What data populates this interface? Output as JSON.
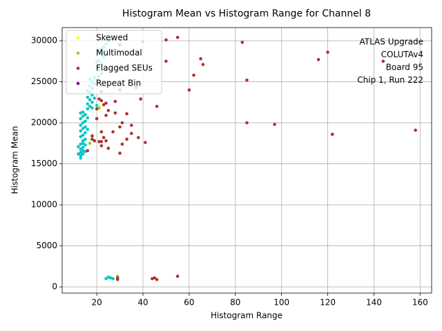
{
  "chart_data": {
    "type": "scatter",
    "title": "Histogram Mean vs Histogram Range for Channel 8",
    "x_label": "Histogram Range",
    "y_label": "Histogram Mean",
    "annotation": [
      "ATLAS Upgrade",
      "COLUTAv4",
      "Board 95",
      "Chip 1, Run 222"
    ],
    "xlim": [
      5,
      165
    ],
    "ylim": [
      -750,
      31600
    ],
    "xticks": [
      20,
      40,
      60,
      80,
      100,
      120,
      140,
      160
    ],
    "yticks": [
      0,
      5000,
      10000,
      15000,
      20000,
      25000,
      30000
    ],
    "grid": true,
    "legend": "upper left",
    "series": [
      {
        "color": "#00c8c8",
        "x": [
          13,
          13,
          14,
          13,
          14,
          13,
          12,
          13,
          14,
          15,
          14,
          15,
          13,
          14,
          15,
          13,
          14,
          15,
          13,
          16,
          14,
          15,
          13,
          14,
          15,
          13,
          14,
          16,
          15,
          12,
          16,
          17,
          16,
          18,
          17,
          16,
          18,
          17,
          16,
          18,
          17,
          19,
          18,
          17,
          19,
          20,
          18,
          19,
          20,
          21,
          22,
          21,
          20,
          22,
          21,
          23,
          22,
          21,
          23,
          24,
          25,
          22,
          20,
          26,
          24,
          25,
          26,
          27,
          14
        ],
        "y": [
          15700,
          16000,
          16200,
          16400,
          16600,
          16800,
          17100,
          17400,
          17000,
          17300,
          17800,
          18000,
          18300,
          18500,
          18800,
          19000,
          19300,
          19500,
          19700,
          19200,
          20000,
          20200,
          20500,
          20800,
          21000,
          21200,
          21300,
          20600,
          16500,
          16200,
          21700,
          22000,
          22300,
          22500,
          22800,
          23100,
          23400,
          23700,
          23900,
          24200,
          24500,
          24700,
          25000,
          25300,
          25500,
          22100,
          21800,
          23000,
          25200,
          25600,
          26000,
          26400,
          26800,
          27200,
          27600,
          28000,
          28400,
          28800,
          29200,
          29600,
          30000,
          29000,
          27400,
          30200,
          1000,
          1200,
          1100,
          1000,
          17500
        ]
      },
      {
        "name": "Skewed",
        "color": "#ffff00",
        "x": [
          21
        ],
        "y": [
          22000
        ]
      },
      {
        "name": "Multimodal",
        "color": "#9acd32",
        "x": [
          29,
          17,
          21
        ],
        "y": [
          1300,
          17500,
          21800
        ]
      },
      {
        "name": "Flagged SEUs",
        "color": "#b03030",
        "x": [
          55,
          50,
          83,
          40,
          120,
          65,
          116,
          144,
          50,
          66,
          62,
          85,
          60,
          30,
          37,
          22,
          39,
          28,
          21,
          22,
          24,
          23,
          46,
          20,
          25,
          28,
          33,
          24,
          20,
          31,
          85,
          97,
          35,
          30,
          158,
          22,
          27,
          35,
          122,
          18,
          38,
          23,
          18,
          33,
          24,
          21,
          41,
          31,
          22,
          25,
          16,
          30,
          44,
          45,
          46,
          55,
          29,
          29,
          19,
          22
        ],
        "y": [
          30400,
          30100,
          29800,
          29900,
          28600,
          27800,
          27700,
          27500,
          27500,
          27100,
          25800,
          25200,
          24000,
          24000,
          24300,
          23800,
          22900,
          22600,
          22900,
          22700,
          22400,
          22200,
          22000,
          21700,
          21500,
          21200,
          21100,
          20900,
          20500,
          20000,
          20000,
          19800,
          19700,
          19500,
          19100,
          18900,
          18900,
          18700,
          18600,
          18400,
          18200,
          18200,
          18000,
          18000,
          17800,
          17700,
          17600,
          17400,
          17200,
          16900,
          16600,
          16300,
          1000,
          1100,
          900,
          1300,
          900,
          1100,
          17800,
          17700
        ]
      },
      {
        "name": "Repeat Bin",
        "color": "#800080",
        "x": [
          30
        ],
        "y": [
          29500
        ]
      }
    ]
  }
}
